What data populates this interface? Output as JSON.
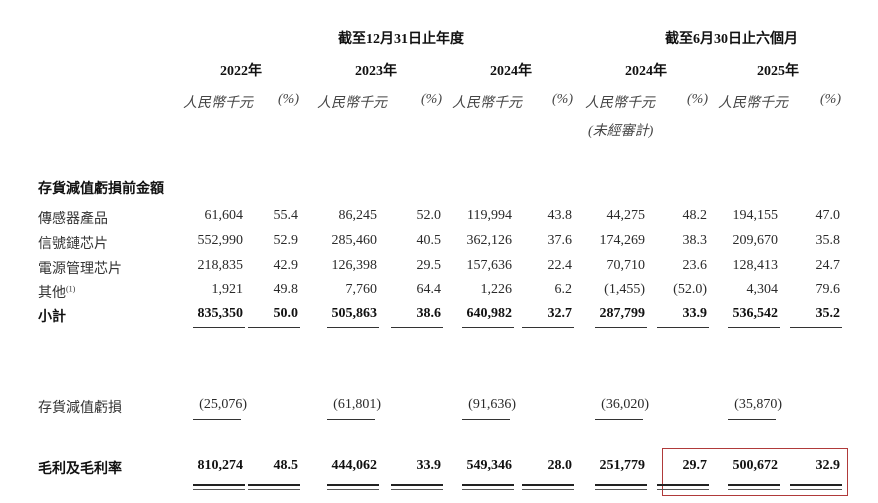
{
  "header": {
    "group_annual": "截至12月31日止年度",
    "group_interim": "截至6月30日止六個月",
    "years": [
      "2022年",
      "2023年",
      "2024年",
      "2024年",
      "2025年"
    ],
    "unit_amount": "人民幣千元",
    "unit_pct": "(%)",
    "unaudited": "(未經審計)"
  },
  "section_label": "存貨減值虧損前金額",
  "rows": [
    {
      "label": "傳感器產品",
      "values": [
        "61,604",
        "55.4",
        "86,245",
        "52.0",
        "119,994",
        "43.8",
        "44,275",
        "48.2",
        "194,155",
        "47.0"
      ]
    },
    {
      "label": "信號鏈芯片",
      "values": [
        "552,990",
        "52.9",
        "285,460",
        "40.5",
        "362,126",
        "37.6",
        "174,269",
        "38.3",
        "209,670",
        "35.8"
      ]
    },
    {
      "label": "電源管理芯片",
      "values": [
        "218,835",
        "42.9",
        "126,398",
        "29.5",
        "157,636",
        "22.4",
        "70,710",
        "23.6",
        "128,413",
        "24.7"
      ]
    },
    {
      "label": "其他",
      "footnote": "(1)",
      "values": [
        "1,921",
        "49.8",
        "7,760",
        "64.4",
        "1,226",
        "6.2",
        "(1,455)",
        "(52.0)",
        "4,304",
        "79.6"
      ]
    }
  ],
  "subtotal": {
    "label": "小計",
    "values": [
      "835,350",
      "50.0",
      "505,863",
      "38.6",
      "640,982",
      "32.7",
      "287,799",
      "33.9",
      "536,542",
      "35.2"
    ]
  },
  "impairment": {
    "label": "存貨減值虧損",
    "values": [
      "(25,076)",
      "(61,801)",
      "(91,636)",
      "(36,020)",
      "(35,870)"
    ]
  },
  "gross_profit": {
    "label": "毛利及毛利率",
    "values": [
      "810,274",
      "48.5",
      "444,062",
      "33.9",
      "549,346",
      "28.0",
      "251,779",
      "29.7",
      "500,672",
      "32.9"
    ]
  },
  "colors": {
    "highlight_box": "#b03a3a"
  }
}
